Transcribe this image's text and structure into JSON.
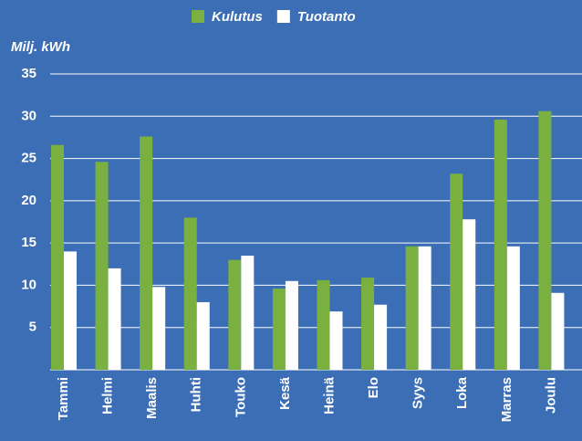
{
  "chart_data": {
    "type": "bar",
    "y_label": "Milj. kWh",
    "categories": [
      "Tammi",
      "Helmi",
      "Maalis",
      "Huhti",
      "Touko",
      "Kesä",
      "Heinä",
      "Elo",
      "Syys",
      "Loka",
      "Marras",
      "Joulu"
    ],
    "series": [
      {
        "name": "Kulutus",
        "color": "#7ab03f",
        "values": [
          26.6,
          24.6,
          27.6,
          18,
          13,
          9.6,
          10.6,
          10.9,
          14.6,
          23.2,
          29.6,
          30.6
        ]
      },
      {
        "name": "Tuotanto",
        "color": "#ffffff",
        "values": [
          14,
          12,
          9.8,
          8,
          13.5,
          10.5,
          6.9,
          7.7,
          14.6,
          17.8,
          14.6,
          9.1
        ]
      }
    ],
    "ylim": [
      0,
      35
    ],
    "yticks": [
      5,
      10,
      15,
      20,
      25,
      30,
      35
    ],
    "grid": true,
    "legend": "top"
  }
}
